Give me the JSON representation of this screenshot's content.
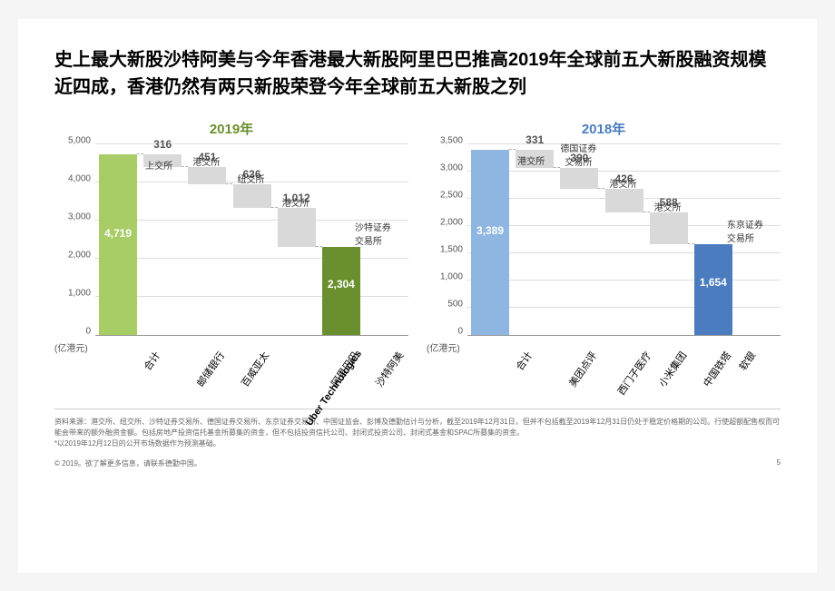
{
  "title": "史上最大新股沙特阿美与今年香港最大新股阿里巴巴推高2019年全球前五大新股融资规模近四成，香港仍然有两只新股荣登今年全球前五大新股之列",
  "unit_label": "(亿港元)",
  "page_num": "5",
  "copyright": "© 2019。欲了解更多信息，请联系德勤中国。",
  "footnote1": "资料来源：港交所、纽交所、沙特证券交易所、德国证券交易所、东京证券交易所、中国证监会、彭博及德勤估计与分析，截至2019年12月31日，但并不包括截至2019年12月31日仍处于稳定价格期的公司。行使超额配售权而可能会带来的额外融资金额。包括房地产投资信托基金所募集的资金，但不包括投资信托公司、封闭式投资公司、封闭式基金和SPAC所募集的资金。",
  "footnote2": "*以2019年12月12日的公开市场数据作为预测基础。",
  "chart_2019": {
    "heading": "2019年",
    "heading_color": "#6a8f2f",
    "y_max": 5000,
    "y_step": 1000,
    "total_color": "#a8cc66",
    "float_color": "#d9d9d9",
    "end_color": "#6a8f2f",
    "items": [
      {
        "label": "合计",
        "value": 4719,
        "type": "total",
        "exchange": ""
      },
      {
        "label": "邮储银行",
        "value": 316,
        "type": "float",
        "exchange": "上交所"
      },
      {
        "label": "百威亚太",
        "value": 451,
        "type": "float",
        "exchange": "港交所"
      },
      {
        "label": "Uber Technologies",
        "value": 636,
        "type": "float",
        "exchange": "纽交所",
        "bold": true
      },
      {
        "label": "阿里巴巴",
        "value": 1012,
        "type": "float",
        "exchange": "港交所"
      },
      {
        "label": "沙特阿美",
        "value": 2304,
        "type": "end",
        "exchange": "沙特证券\n交易所",
        "annot_side": true
      }
    ]
  },
  "chart_2018": {
    "heading": "2018年",
    "heading_color": "#4a7cbf",
    "y_max": 3500,
    "y_step": 500,
    "total_color": "#8fb6e0",
    "float_color": "#d9d9d9",
    "end_color": "#4a7cbf",
    "items": [
      {
        "label": "合计",
        "value": 3389,
        "type": "total",
        "exchange": ""
      },
      {
        "label": "美团点评",
        "value": 331,
        "type": "float",
        "exchange": "港交所"
      },
      {
        "label": "西门子医疗",
        "value": 390,
        "type": "float",
        "exchange": "德国证券\n交易所"
      },
      {
        "label": "小米集团",
        "value": 426,
        "type": "float",
        "exchange": "港交所"
      },
      {
        "label": "中国铁塔",
        "value": 588,
        "type": "float",
        "exchange": "港交所"
      },
      {
        "label": "软银",
        "value": 1654,
        "type": "end",
        "exchange": "东京证券\n交易所",
        "annot_side": true
      }
    ]
  }
}
